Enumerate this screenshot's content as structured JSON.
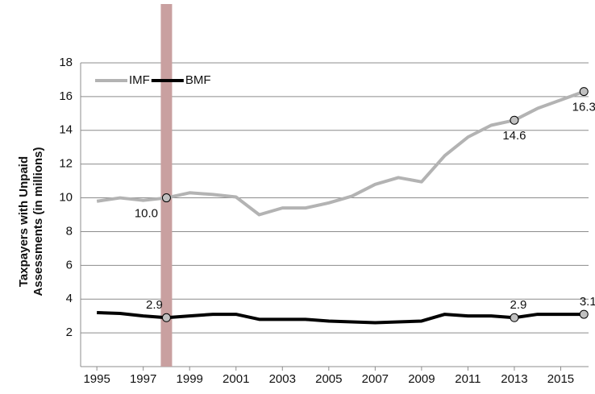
{
  "chart_data": {
    "type": "line",
    "ylabel": [
      "Taxpayers with Unpaid",
      "Assessments  (in millions)"
    ],
    "x": [
      1995,
      1996,
      1997,
      1998,
      1999,
      2000,
      2001,
      2002,
      2003,
      2004,
      2005,
      2006,
      2007,
      2008,
      2009,
      2010,
      2011,
      2012,
      2013,
      2014,
      2015,
      2016
    ],
    "series": [
      {
        "name": "IMF",
        "color": "#b3b3b3",
        "values": [
          9.8,
          10.0,
          9.85,
          10.0,
          10.3,
          10.2,
          10.05,
          9.0,
          9.4,
          9.4,
          9.7,
          10.1,
          10.8,
          11.2,
          10.95,
          12.5,
          13.6,
          14.3,
          14.6,
          15.3,
          15.8,
          16.3
        ],
        "value_labels": [
          null,
          null,
          null,
          "10.0",
          null,
          null,
          null,
          null,
          null,
          null,
          null,
          null,
          null,
          null,
          null,
          null,
          null,
          null,
          "14.6",
          null,
          null,
          "16.3"
        ]
      },
      {
        "name": "BMF",
        "color": "#000000",
        "values": [
          3.2,
          3.15,
          3.0,
          2.9,
          3.0,
          3.1,
          3.1,
          2.8,
          2.8,
          2.8,
          2.7,
          2.65,
          2.6,
          2.65,
          2.7,
          3.1,
          3.0,
          3.0,
          2.9,
          3.1,
          3.1,
          3.1
        ],
        "value_labels": [
          null,
          null,
          null,
          "2.9",
          null,
          null,
          null,
          null,
          null,
          null,
          null,
          null,
          null,
          null,
          null,
          null,
          null,
          null,
          "2.9",
          null,
          null,
          "3.1"
        ]
      }
    ],
    "xlim": [
      1994.3,
      2016.2
    ],
    "xticks": [
      1995,
      1997,
      1999,
      2001,
      2003,
      2005,
      2007,
      2009,
      2011,
      2013,
      2015
    ],
    "ylim": [
      0,
      18
    ],
    "yticks": [
      2,
      4,
      6,
      8,
      10,
      12,
      14,
      16,
      18
    ],
    "grid": true,
    "legend": "top-left",
    "highlight": {
      "x": 1998,
      "color": "#c9a0a0"
    }
  }
}
